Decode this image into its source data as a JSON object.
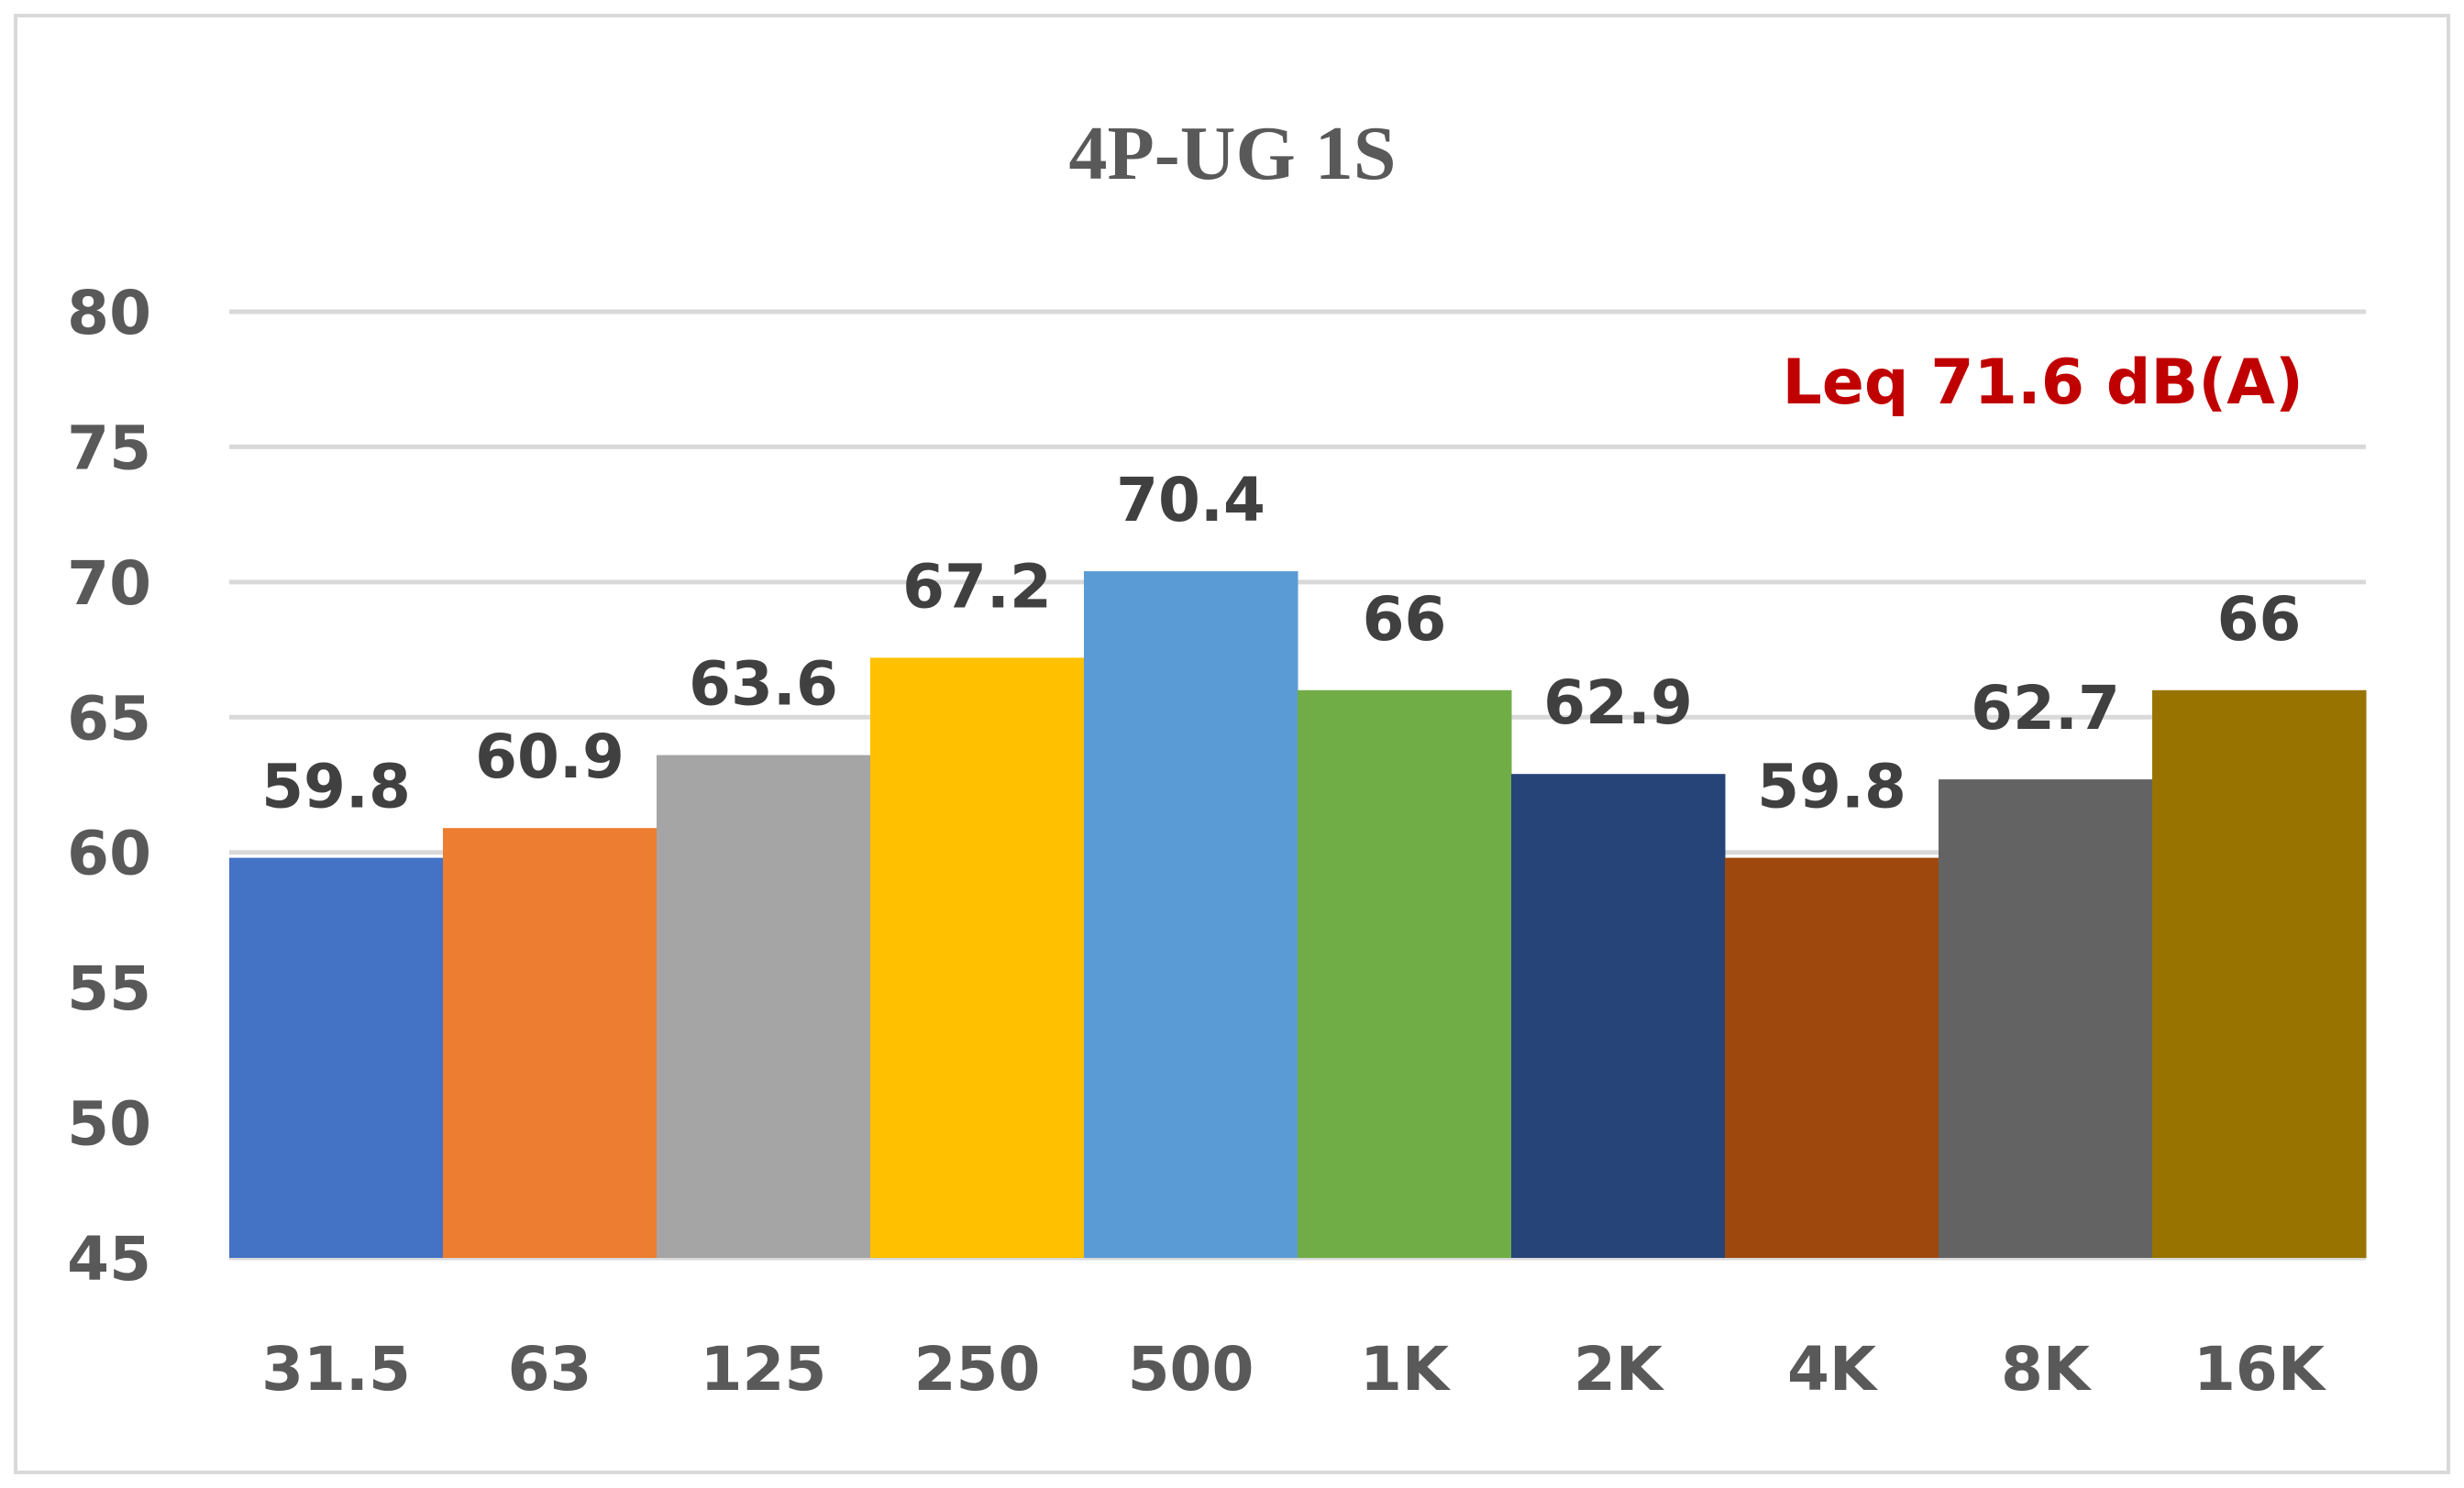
{
  "chart_data": {
    "type": "bar",
    "title": "4P-UG 1S",
    "annotation": "Leq 71.6 dB(A)",
    "categories": [
      "31.5",
      "63",
      "125",
      "250",
      "500",
      "1K",
      "2K",
      "4K",
      "8K",
      "16K"
    ],
    "values": [
      59.8,
      60.9,
      63.6,
      67.2,
      70.4,
      66,
      62.9,
      59.8,
      62.7,
      66
    ],
    "data_labels": [
      "59.8",
      "60.9",
      "63.6",
      "67.2",
      "70.4",
      "66",
      "62.9",
      "59.8",
      "62.7",
      "66"
    ],
    "colors": [
      "#4472c4",
      "#ed7d31",
      "#a5a5a5",
      "#ffc000",
      "#5b9bd5",
      "#70ad47",
      "#264478",
      "#9e480e",
      "#636363",
      "#997300"
    ],
    "ylim": [
      45,
      80
    ],
    "yticks": [
      45,
      50,
      55,
      60,
      65,
      70,
      75,
      80
    ],
    "ytick_labels": [
      "45",
      "50",
      "55",
      "60",
      "65",
      "70",
      "75",
      "80"
    ],
    "xlabel": "",
    "ylabel": "",
    "grid": true,
    "legend": "none",
    "annotation_color": "#c00000"
  }
}
